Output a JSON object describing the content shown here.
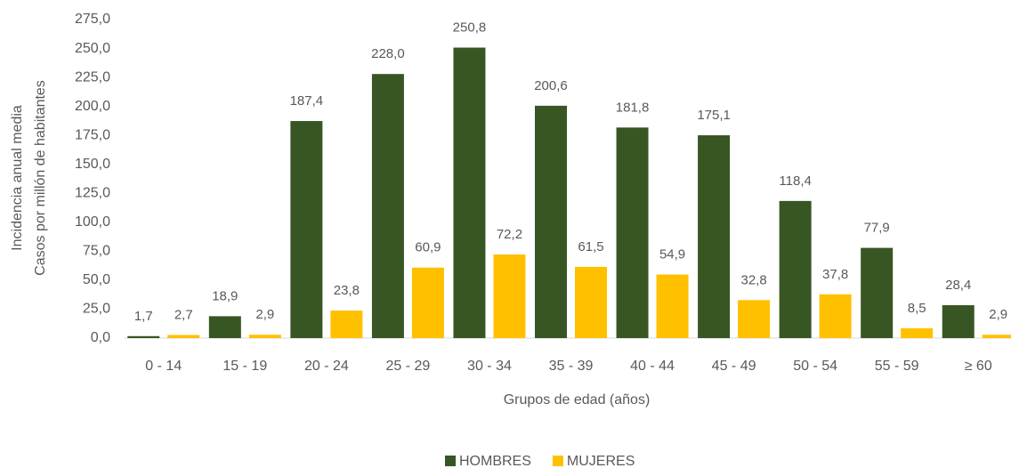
{
  "chart_data": {
    "type": "bar",
    "y_label": [
      "Incidencia anual media",
      "Casos por millón de habitantes"
    ],
    "x_label": "Grupos de edad (años)",
    "categories": [
      "0 - 14",
      "15 - 19",
      "20 - 24",
      "25 - 29",
      "30 - 34",
      "35 - 39",
      "40 - 44",
      "45 - 49",
      "50 - 54",
      "55 - 59",
      "≥ 60"
    ],
    "series": [
      {
        "name": "HOMBRES",
        "color": "#375623",
        "values": [
          1.7,
          18.9,
          187.4,
          228.0,
          250.8,
          200.6,
          181.8,
          175.1,
          118.4,
          77.9,
          28.4
        ],
        "value_labels": [
          "1,7",
          "18,9",
          "187,4",
          "228,0",
          "250,8",
          "200,6",
          "181,8",
          "175,1",
          "118,4",
          "77,9",
          "28,4"
        ]
      },
      {
        "name": "MUJERES",
        "color": "#ffc000",
        "values": [
          2.7,
          2.9,
          23.8,
          60.9,
          72.2,
          61.5,
          54.9,
          32.8,
          37.8,
          8.5,
          2.9
        ],
        "value_labels": [
          "2,7",
          "2,9",
          "23,8",
          "60,9",
          "72,2",
          "61,5",
          "54,9",
          "32,8",
          "37,8",
          "8,5",
          "2,9"
        ]
      }
    ],
    "ylim": [
      0,
      275
    ],
    "yticks": [
      {
        "value": 0,
        "label": "0,0"
      },
      {
        "value": 25,
        "label": "25,0"
      },
      {
        "value": 50,
        "label": "50,0"
      },
      {
        "value": 75,
        "label": "75,0"
      },
      {
        "value": 100,
        "label": "100,0"
      },
      {
        "value": 125,
        "label": "125,0"
      },
      {
        "value": 150,
        "label": "150,0"
      },
      {
        "value": 175,
        "label": "175,0"
      },
      {
        "value": 200,
        "label": "200,0"
      },
      {
        "value": 225,
        "label": "225,0"
      },
      {
        "value": 250,
        "label": "250,0"
      },
      {
        "value": 275,
        "label": "275,0"
      }
    ],
    "legend": "bottom"
  }
}
